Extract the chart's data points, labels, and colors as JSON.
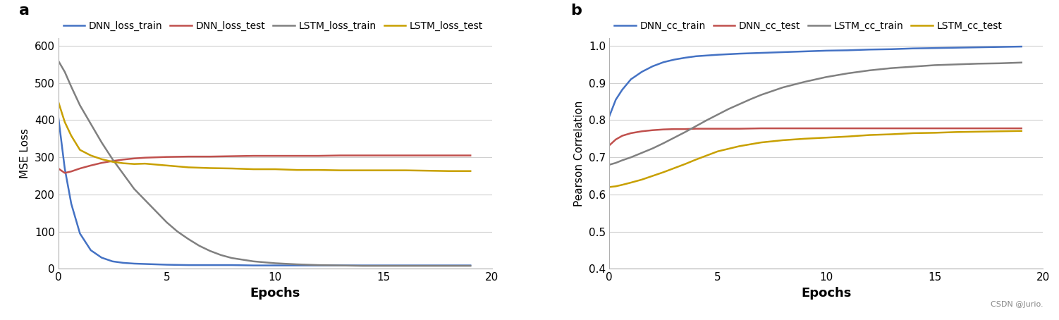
{
  "panel_a": {
    "title": "a",
    "xlabel": "Epochs",
    "ylabel": "MSE Loss",
    "ylim": [
      0,
      620
    ],
    "xlim": [
      0,
      20
    ],
    "yticks": [
      0,
      100,
      200,
      300,
      400,
      500,
      600
    ],
    "xticks": [
      0,
      5,
      10,
      15,
      20
    ],
    "legend_labels": [
      "DNN_loss_train",
      "DNN_loss_test",
      "LSTM_loss_train",
      "LSTM_loss_test"
    ],
    "colors": [
      "#4472C4",
      "#C0504D",
      "#808080",
      "#C8A000"
    ],
    "series": {
      "DNN_loss_train": {
        "x": [
          0,
          0.3,
          0.6,
          1,
          1.5,
          2,
          2.5,
          3,
          3.5,
          4,
          4.5,
          5,
          6,
          7,
          8,
          9,
          10,
          11,
          12,
          13,
          14,
          15,
          16,
          17,
          18,
          19
        ],
        "y": [
          410,
          270,
          175,
          95,
          50,
          30,
          20,
          16,
          14,
          13,
          12,
          11,
          10,
          10,
          10,
          9,
          9,
          9,
          9,
          9,
          9,
          9,
          9,
          9,
          9,
          9
        ]
      },
      "DNN_loss_test": {
        "x": [
          0,
          0.3,
          0.6,
          1,
          1.5,
          2,
          2.5,
          3,
          3.5,
          4,
          5,
          6,
          7,
          8,
          9,
          10,
          11,
          12,
          13,
          14,
          15,
          16,
          17,
          18,
          19
        ],
        "y": [
          270,
          258,
          262,
          270,
          278,
          285,
          290,
          294,
          297,
          299,
          301,
          302,
          302,
          303,
          304,
          304,
          304,
          304,
          305,
          305,
          305,
          305,
          305,
          305,
          305
        ]
      },
      "LSTM_loss_train": {
        "x": [
          0,
          0.3,
          0.6,
          1,
          1.5,
          2,
          2.5,
          3,
          3.5,
          4,
          4.5,
          5,
          5.5,
          6,
          6.5,
          7,
          7.5,
          8,
          9,
          10,
          11,
          12,
          13,
          14,
          15,
          16,
          17,
          18,
          19
        ],
        "y": [
          560,
          530,
          490,
          440,
          390,
          340,
          295,
          255,
          215,
          185,
          155,
          125,
          100,
          80,
          62,
          48,
          37,
          29,
          20,
          15,
          12,
          10,
          9,
          8,
          8,
          8,
          8,
          8,
          8
        ]
      },
      "LSTM_loss_test": {
        "x": [
          0,
          0.3,
          0.6,
          1,
          1.5,
          2,
          2.5,
          3,
          3.5,
          4,
          5,
          6,
          7,
          8,
          9,
          10,
          11,
          12,
          13,
          14,
          15,
          16,
          17,
          18,
          19
        ],
        "y": [
          450,
          395,
          358,
          320,
          305,
          295,
          288,
          284,
          282,
          283,
          278,
          273,
          271,
          270,
          268,
          268,
          266,
          266,
          265,
          265,
          265,
          265,
          264,
          263,
          263
        ]
      }
    }
  },
  "panel_b": {
    "title": "b",
    "xlabel": "Epochs",
    "ylabel": "Pearson Correlation",
    "ylim": [
      0.4,
      1.02
    ],
    "xlim": [
      0,
      20
    ],
    "yticks": [
      0.4,
      0.5,
      0.6,
      0.7,
      0.8,
      0.9,
      1.0
    ],
    "xticks": [
      0,
      5,
      10,
      15,
      20
    ],
    "legend_labels": [
      "DNN_cc_train",
      "DNN_cc_test",
      "LSTM_cc_train",
      "LSTM_cc_test"
    ],
    "colors": [
      "#4472C4",
      "#C0504D",
      "#808080",
      "#C8A000"
    ],
    "watermark": "CSDN @Jurio.",
    "series": {
      "DNN_cc_train": {
        "x": [
          0,
          0.3,
          0.6,
          1,
          1.5,
          2,
          2.5,
          3,
          3.5,
          4,
          4.5,
          5,
          6,
          7,
          8,
          9,
          10,
          11,
          12,
          13,
          14,
          15,
          16,
          17,
          18,
          19
        ],
        "y": [
          0.81,
          0.855,
          0.882,
          0.91,
          0.93,
          0.945,
          0.956,
          0.963,
          0.968,
          0.972,
          0.974,
          0.976,
          0.979,
          0.981,
          0.983,
          0.985,
          0.987,
          0.988,
          0.99,
          0.991,
          0.993,
          0.994,
          0.995,
          0.996,
          0.997,
          0.998
        ]
      },
      "DNN_cc_test": {
        "x": [
          0,
          0.3,
          0.6,
          1,
          1.5,
          2,
          2.5,
          3,
          3.5,
          4,
          5,
          6,
          7,
          8,
          9,
          10,
          11,
          12,
          13,
          14,
          15,
          16,
          17,
          18,
          19
        ],
        "y": [
          0.732,
          0.748,
          0.758,
          0.765,
          0.77,
          0.773,
          0.775,
          0.776,
          0.776,
          0.777,
          0.777,
          0.777,
          0.778,
          0.778,
          0.778,
          0.778,
          0.778,
          0.778,
          0.778,
          0.778,
          0.778,
          0.778,
          0.778,
          0.778,
          0.778
        ]
      },
      "LSTM_cc_train": {
        "x": [
          0,
          0.3,
          0.6,
          1,
          1.5,
          2,
          2.5,
          3,
          3.5,
          4,
          4.5,
          5,
          5.5,
          6,
          6.5,
          7,
          7.5,
          8,
          9,
          10,
          11,
          12,
          13,
          14,
          15,
          16,
          17,
          18,
          19
        ],
        "y": [
          0.68,
          0.685,
          0.692,
          0.7,
          0.712,
          0.724,
          0.738,
          0.753,
          0.768,
          0.784,
          0.8,
          0.815,
          0.83,
          0.843,
          0.856,
          0.868,
          0.878,
          0.888,
          0.903,
          0.916,
          0.926,
          0.934,
          0.94,
          0.944,
          0.948,
          0.95,
          0.952,
          0.953,
          0.955
        ]
      },
      "LSTM_cc_test": {
        "x": [
          0,
          0.3,
          0.6,
          1,
          1.5,
          2,
          2.5,
          3,
          3.5,
          4,
          5,
          6,
          7,
          8,
          9,
          10,
          11,
          12,
          13,
          14,
          15,
          16,
          17,
          18,
          19
        ],
        "y": [
          0.62,
          0.622,
          0.626,
          0.632,
          0.64,
          0.65,
          0.66,
          0.671,
          0.682,
          0.694,
          0.716,
          0.73,
          0.74,
          0.746,
          0.75,
          0.753,
          0.756,
          0.76,
          0.762,
          0.765,
          0.766,
          0.768,
          0.769,
          0.77,
          0.771
        ]
      }
    }
  },
  "fig_width": 15.02,
  "fig_height": 4.54,
  "dpi": 100
}
